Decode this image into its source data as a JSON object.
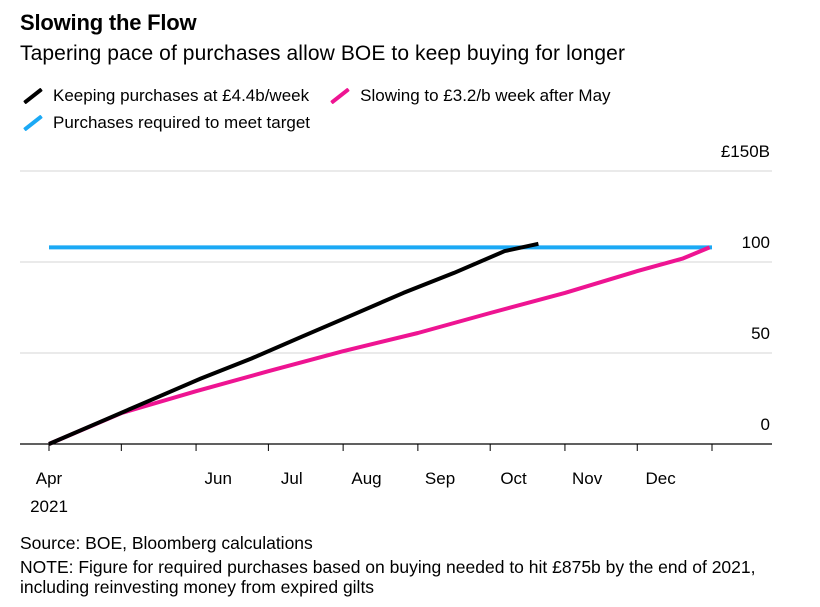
{
  "header": {
    "title": "Slowing the Flow",
    "subtitle": "Tapering pace of purchases allow BOE to keep buying for longer"
  },
  "legend": [
    {
      "label": "Keeping purchases at £4.4b/week",
      "color": "#000000"
    },
    {
      "label": "Slowing to £3.2/b week after May",
      "color": "#ee1492"
    },
    {
      "label": "Purchases required to meet target",
      "color": "#1ba9f5"
    }
  ],
  "footer": {
    "source": "Source: BOE, Bloomberg calculations",
    "note": "NOTE: Figure for required purchases based on buying needed to hit £875b by the end of 2021, including reinvesting money from expired gilts"
  },
  "chart_data": {
    "type": "line",
    "title": "Slowing the Flow",
    "subtitle": "Tapering pace of purchases allow BOE to keep buying for longer",
    "x_tick_labels": [
      "Apr",
      "Jun",
      "Jul",
      "Aug",
      "Sep",
      "Oct",
      "Nov",
      "Dec"
    ],
    "x_year_label": "2021",
    "x_range": [
      "2021-04-01",
      "2022-01-01"
    ],
    "y_range": [
      0,
      150
    ],
    "y_ticks": [
      0,
      50,
      100,
      150
    ],
    "y_tick_labels": [
      "0",
      "50",
      "100",
      "£150B"
    ],
    "y_axis_side": "right",
    "grid": "horizontal",
    "legend_position": "top-left",
    "series": [
      {
        "name": "Keeping purchases at £4.4b/week",
        "color": "#000000",
        "points": [
          [
            "2021-04-01",
            0
          ],
          [
            "2021-04-22",
            12
          ],
          [
            "2021-05-13",
            24
          ],
          [
            "2021-06-03",
            36
          ],
          [
            "2021-06-24",
            47
          ],
          [
            "2021-07-15",
            59
          ],
          [
            "2021-08-05",
            71
          ],
          [
            "2021-08-26",
            83
          ],
          [
            "2021-09-16",
            94
          ],
          [
            "2021-10-07",
            106
          ],
          [
            "2021-10-21",
            110
          ]
        ]
      },
      {
        "name": "Slowing to £3.2/b week after May",
        "color": "#ee1492",
        "points": [
          [
            "2021-04-01",
            0
          ],
          [
            "2021-05-01",
            17
          ],
          [
            "2021-06-01",
            29
          ],
          [
            "2021-07-01",
            40
          ],
          [
            "2021-08-01",
            51
          ],
          [
            "2021-09-01",
            61
          ],
          [
            "2021-10-01",
            72
          ],
          [
            "2021-11-01",
            83
          ],
          [
            "2021-12-01",
            95
          ],
          [
            "2021-12-20",
            102
          ],
          [
            "2021-12-31",
            108
          ]
        ]
      },
      {
        "name": "Purchases required to meet target",
        "color": "#1ba9f5",
        "points": [
          [
            "2021-04-01",
            108
          ],
          [
            "2022-01-01",
            108
          ]
        ]
      }
    ]
  }
}
